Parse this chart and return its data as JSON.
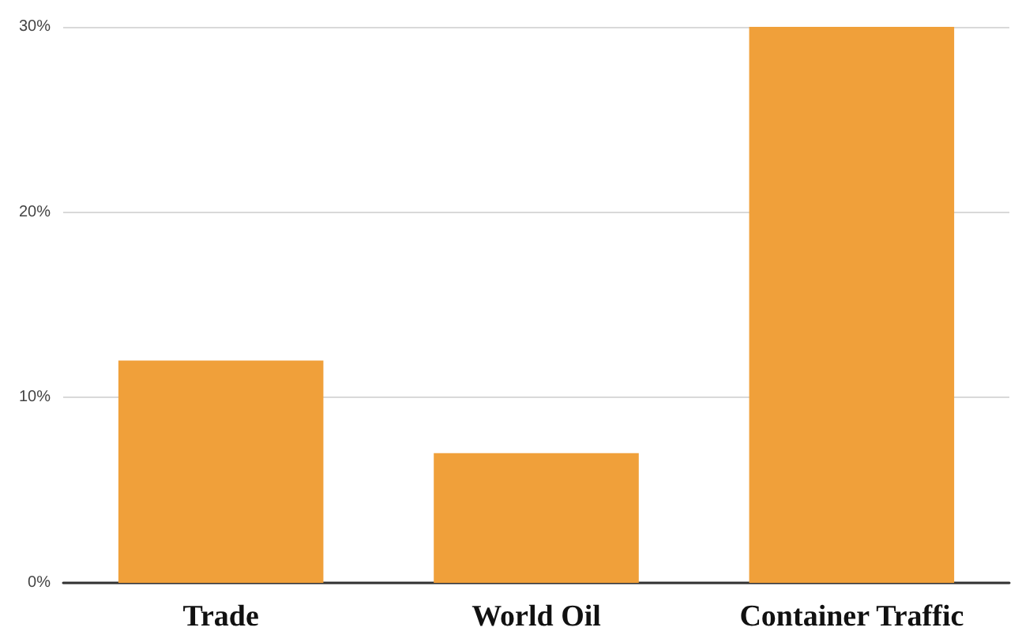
{
  "chart_data": {
    "type": "bar",
    "categories": [
      "Trade",
      "World Oil",
      "Container Traffic"
    ],
    "values": [
      12,
      7,
      30
    ],
    "color": "#f0a03a",
    "ylim": [
      0,
      30
    ],
    "yticks": [
      {
        "value": 0,
        "label": "0%"
      },
      {
        "value": 10,
        "label": "10%"
      },
      {
        "value": 20,
        "label": "20%"
      },
      {
        "value": 30,
        "label": "30%"
      }
    ],
    "grid": "y"
  }
}
